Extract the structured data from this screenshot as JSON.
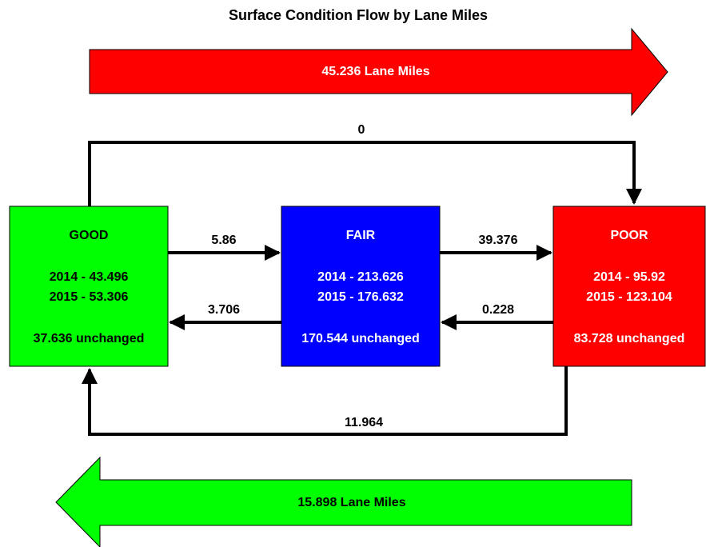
{
  "title": "Surface Condition Flow by Lane Miles",
  "top_arrow": {
    "label": "45.236 Lane Miles"
  },
  "bottom_arrow": {
    "label": "15.898 Lane Miles"
  },
  "nodes": [
    {
      "label": "GOOD",
      "lines": [
        "2014 - 43.496",
        "2015 - 53.306"
      ],
      "unchanged": "37.636 unchanged"
    },
    {
      "label": "FAIR",
      "lines": [
        "2014 - 213.626",
        "2015 - 176.632"
      ],
      "unchanged": "170.544 unchanged"
    },
    {
      "label": "POOR",
      "lines": [
        "2014 - 95.92",
        "2015 - 123.104"
      ],
      "unchanged": "83.728 unchanged"
    }
  ],
  "flows": [
    {
      "from": "GOOD",
      "to": "POOR",
      "label": "0"
    },
    {
      "from": "GOOD",
      "to": "FAIR",
      "label": "5.86"
    },
    {
      "from": "FAIR",
      "to": "GOOD",
      "label": "3.706"
    },
    {
      "from": "FAIR",
      "to": "POOR",
      "label": "39.376"
    },
    {
      "from": "POOR",
      "to": "FAIR",
      "label": "0.228"
    },
    {
      "from": "POOR",
      "to": "GOOD",
      "label": "11.964"
    }
  ]
}
